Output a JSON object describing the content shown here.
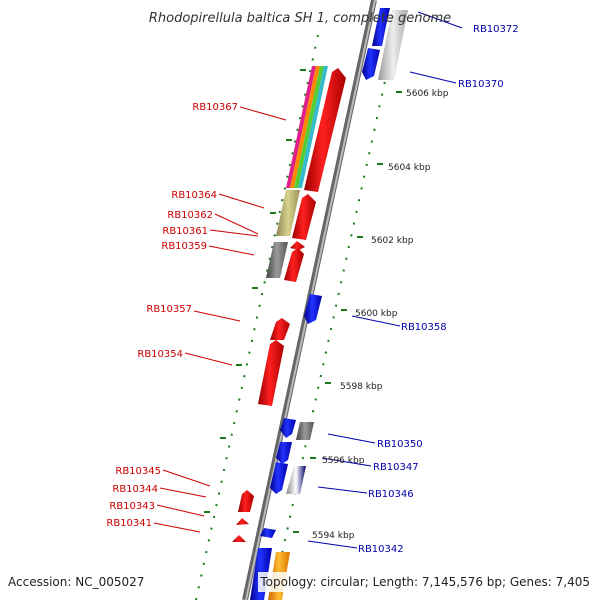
{
  "title": "Rhodopirellula baltica SH 1, complete genome",
  "footer": {
    "accession": "Accession: NC_005027",
    "topology": "Topology: circular; Length: 7,145,576 bp; Genes: 7,405"
  },
  "kbp_ticks": [
    "5606 kbp",
    "5604 kbp",
    "5602 kbp",
    "5600 kbp",
    "5598 kbp",
    "5596 kbp",
    "5594 kbp"
  ],
  "labels_reverse": [
    "RB10367",
    "RB10364",
    "RB10362",
    "RB10361",
    "RB10359",
    "RB10357",
    "RB10354",
    "RB10345",
    "RB10344",
    "RB10343",
    "RB10341"
  ],
  "labels_forward": [
    "RB10372",
    "RB10370",
    "RB10358",
    "RB10350",
    "RB10347",
    "RB10346",
    "RB10342"
  ],
  "colors": {
    "forward_gene": "#0000ee",
    "reverse_gene": "#ee0000",
    "grey_gene": "#777777",
    "khaki_gene": "#bdb76b",
    "orange_gene": "#ff9900",
    "backbone": "#888888",
    "tick_green": "#1a7a1a",
    "forward_label": "#0000aa",
    "reverse_label": "#cc0000"
  }
}
